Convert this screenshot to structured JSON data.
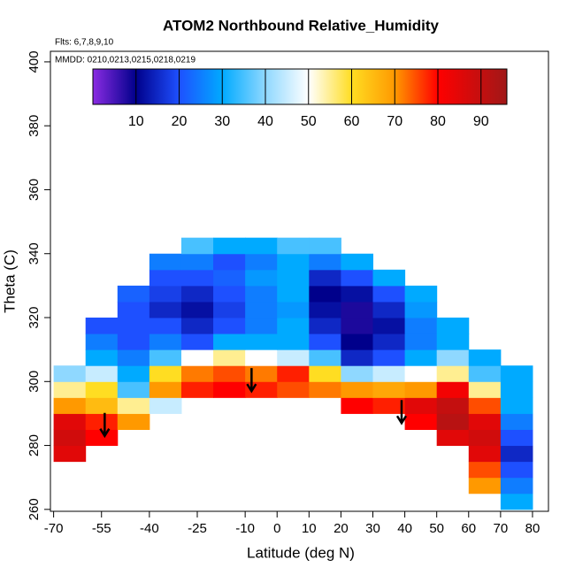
{
  "chart_data": {
    "type": "heatmap",
    "title": "ATOM2 Northbound Relative_Humidity",
    "subtitle": "Flts: 6,7,8,9,10",
    "annotation": "MMDD: 0210,0213,0215,0218,0219",
    "x_label": "Latitude (deg N)",
    "y_label": "Theta (C)",
    "xlim": [
      -71,
      85
    ],
    "ylim": [
      259.4,
      403.3
    ],
    "xticks": [
      -70,
      -55,
      -40,
      -25,
      -10,
      0,
      10,
      20,
      30,
      40,
      50,
      60,
      70,
      80
    ],
    "yticks": [
      260,
      280,
      300,
      320,
      340,
      360,
      380,
      400
    ],
    "x_edges": [
      -70,
      -60,
      -50,
      -40,
      -30,
      -20,
      -10,
      0,
      10,
      20,
      30,
      40,
      50,
      60,
      70,
      80
    ],
    "y_edges": [
      260,
      265,
      270,
      275,
      280,
      285,
      290,
      295,
      300,
      305,
      310,
      315,
      320,
      325,
      330,
      335,
      340,
      345
    ],
    "z": [
      [
        null,
        null,
        null,
        null,
        null,
        null,
        null,
        null,
        null,
        null,
        null,
        null,
        null,
        null,
        30
      ],
      [
        null,
        null,
        null,
        null,
        null,
        null,
        null,
        null,
        null,
        null,
        null,
        null,
        null,
        70,
        25
      ],
      [
        null,
        null,
        null,
        null,
        null,
        null,
        null,
        null,
        null,
        null,
        null,
        null,
        null,
        75,
        20
      ],
      [
        85,
        null,
        null,
        null,
        null,
        null,
        null,
        null,
        null,
        null,
        null,
        null,
        null,
        85,
        15
      ],
      [
        88,
        80,
        null,
        null,
        null,
        null,
        null,
        null,
        null,
        null,
        null,
        null,
        85,
        88,
        20
      ],
      [
        85,
        78,
        70,
        null,
        null,
        null,
        null,
        null,
        null,
        null,
        null,
        80,
        92,
        85,
        25
      ],
      [
        70,
        65,
        55,
        45,
        null,
        null,
        null,
        null,
        null,
        80,
        78,
        85,
        90,
        75,
        30
      ],
      [
        55,
        60,
        35,
        70,
        78,
        80,
        78,
        75,
        72,
        70,
        68,
        70,
        82,
        55,
        30
      ],
      [
        40,
        45,
        30,
        60,
        72,
        75,
        72,
        78,
        60,
        40,
        45,
        50,
        55,
        35,
        30
      ],
      [
        null,
        30,
        25,
        35,
        50,
        55,
        50,
        45,
        35,
        15,
        20,
        30,
        40,
        30,
        null
      ],
      [
        null,
        25,
        20,
        25,
        20,
        30,
        30,
        30,
        20,
        10,
        15,
        25,
        30,
        null,
        null
      ],
      [
        null,
        20,
        20,
        20,
        15,
        20,
        25,
        30,
        15,
        8,
        12,
        25,
        30,
        null,
        null
      ],
      [
        null,
        null,
        20,
        15,
        12,
        18,
        25,
        28,
        12,
        8,
        15,
        28,
        null,
        null,
        null
      ],
      [
        null,
        null,
        22,
        18,
        15,
        20,
        25,
        30,
        10,
        12,
        20,
        30,
        null,
        null,
        null
      ],
      [
        null,
        null,
        null,
        20,
        20,
        22,
        28,
        30,
        15,
        20,
        30,
        null,
        null,
        null,
        null
      ],
      [
        null,
        null,
        null,
        25,
        25,
        20,
        25,
        30,
        25,
        30,
        null,
        null,
        null,
        null,
        null
      ],
      [
        null,
        null,
        null,
        null,
        35,
        30,
        30,
        35,
        35,
        null,
        null,
        null,
        null,
        null,
        null
      ]
    ],
    "zlim": [
      0,
      96
    ],
    "zticks": [
      10,
      20,
      30,
      40,
      50,
      60,
      70,
      80,
      90
    ],
    "colorscale": [
      [
        0,
        "#8a2be2"
      ],
      [
        10,
        "#00008b"
      ],
      [
        20,
        "#1e50ff"
      ],
      [
        30,
        "#00aaff"
      ],
      [
        40,
        "#8fd8ff"
      ],
      [
        50,
        "#ffffff"
      ],
      [
        60,
        "#ffdd22"
      ],
      [
        70,
        "#ff9900"
      ],
      [
        80,
        "#ff0000"
      ],
      [
        96,
        "#a01818"
      ]
    ],
    "arrows": {
      "x": [
        -54,
        -8,
        39
      ],
      "y": [
        283,
        297,
        287
      ]
    }
  }
}
